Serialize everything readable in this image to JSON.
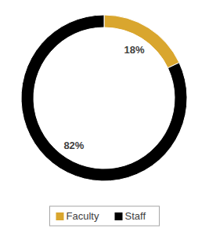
{
  "chart_data": {
    "type": "pie",
    "categories": [
      "Faculty",
      "Staff"
    ],
    "values": [
      18,
      82
    ],
    "value_labels": [
      "18%",
      "82%"
    ],
    "colors": [
      "#d9a62e",
      "#000000"
    ],
    "data_labels": true,
    "legend": "bottom"
  }
}
